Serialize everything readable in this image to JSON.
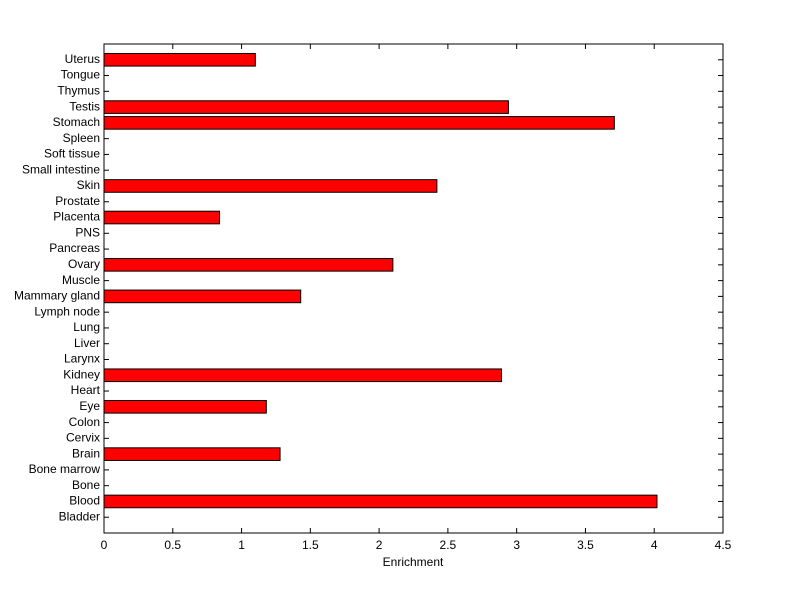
{
  "chart_data": {
    "type": "barh",
    "xlabel": "Enrichment",
    "categories": [
      "Bladder",
      "Blood",
      "Bone",
      "Bone marrow",
      "Brain",
      "Cervix",
      "Colon",
      "Eye",
      "Heart",
      "Kidney",
      "Larynx",
      "Liver",
      "Lung",
      "Lymph node",
      "Mammary gland",
      "Muscle",
      "Ovary",
      "Pancreas",
      "PNS",
      "Placenta",
      "Prostate",
      "Skin",
      "Small intestine",
      "Soft tissue",
      "Spleen",
      "Stomach",
      "Testis",
      "Thymus",
      "Tongue",
      "Uterus"
    ],
    "values": [
      0,
      4.02,
      0,
      0,
      1.28,
      0,
      0,
      1.18,
      0,
      2.89,
      0,
      0,
      0,
      0,
      1.43,
      0,
      2.1,
      0,
      0,
      0.84,
      0,
      2.42,
      0,
      0,
      0,
      3.71,
      2.94,
      0,
      0,
      1.1
    ],
    "color": "#ff0000",
    "xlim": [
      0,
      4.5
    ],
    "xticks": [
      0,
      0.5,
      1,
      1.5,
      2,
      2.5,
      3,
      3.5,
      4,
      4.5
    ],
    "grid": false
  }
}
